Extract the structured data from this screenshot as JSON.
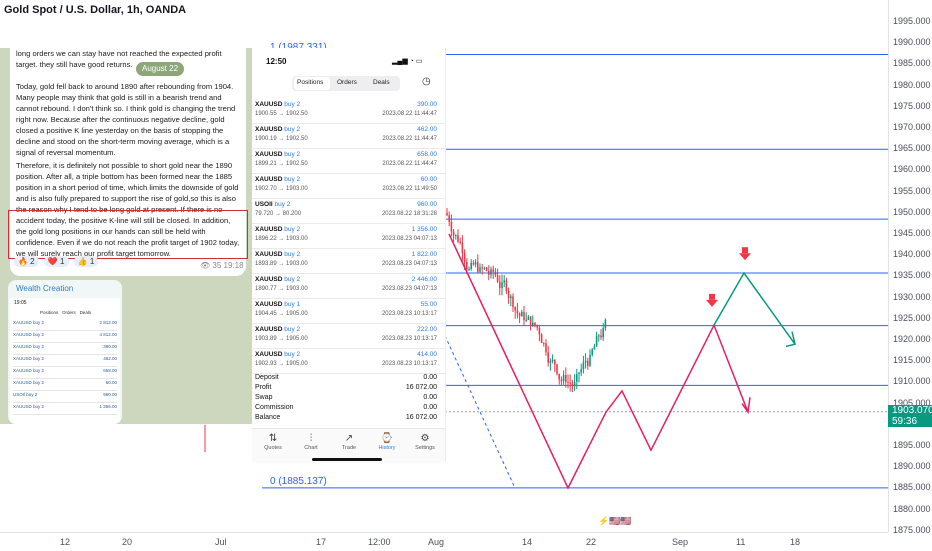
{
  "chart": {
    "title": "Gold Spot / U.S. Dollar, 1h, OANDA",
    "price_ticks": [
      "1995.000",
      "1990.000",
      "1985.000",
      "1980.000",
      "1975.000",
      "1970.000",
      "1965.000",
      "1960.000",
      "1955.000",
      "1950.000",
      "1945.000",
      "1940.000",
      "1935.000",
      "1930.000",
      "1925.000",
      "1920.000",
      "1915.000",
      "1910.000",
      "1905.000",
      "1900.000",
      "1895.000",
      "1890.000",
      "1885.000",
      "1880.000",
      "1875.000"
    ],
    "time_ticks": [
      "12",
      "20",
      "Jul",
      "17",
      "12:00",
      "Aug",
      "14",
      "22",
      "Sep",
      "11",
      "18"
    ],
    "fib_top_label": "1 (1987.331)",
    "fib_bottom_label": "0 (1885.137)",
    "current_price": "1903.070",
    "countdown": "59:36",
    "colors": {
      "fib_line": "#2962ff",
      "up": "#089981",
      "down": "#f23645",
      "projection_up": "#089981",
      "projection_down": "#e91e63"
    }
  },
  "telegram": {
    "top_fragment": "long orders we can stay have not reached the expected profit target. they still have good returns.",
    "date_chip": "August 22",
    "para1": "Today, gold fell back to around 1890 after rebounding from 1904. Many people may think that gold is still in a bearish trend and cannot rebound. I don't think so. I think gold is changing the trend right now. Because after the continuous negative decline, gold closed a positive K line yesterday on the basis of stopping the decline and stood on the short-term moving average, which is a signal of reversal momentum.",
    "para2": "Therefore, it is definitely not possible to short gold near the 1890 position. After all, a triple bottom has been formed near the 1885 position in a short period of time, which limits the downside of gold and is also fully prepared to support the rise of gold,so this is also the reason why I tend to be long gold at present. If there is no",
    "para3": "accident today, the positive K-line will still be closed. In addition, the gold long positions in our hands can still be held with confidence. Even if we do not reach the profit target of 1902 today, we will surely reach our profit target tomorrow.",
    "reactions": [
      "🔥 2",
      "❤️ 1",
      "👍 1"
    ],
    "views": "👁 35",
    "time": "19:18",
    "mini_title": "Wealth Creation",
    "mini_time": "19:05",
    "mini_tabs": [
      "Positions",
      "Orders",
      "Deals"
    ],
    "mini_rows": [
      {
        "sym": "XAUUSD buy 2",
        "val": "2 812.00"
      },
      {
        "sym": "XAUUSD buy 2",
        "val": "4 812.00"
      },
      {
        "sym": "XAUUSD buy 2",
        "val": "390.00"
      },
      {
        "sym": "XAUUSD buy 2",
        "val": "462.00"
      },
      {
        "sym": "XAUUSD buy 2",
        "val": "658.00"
      },
      {
        "sym": "XAUUSD buy 2",
        "val": "60.00"
      },
      {
        "sym": "USOIl buy 2",
        "val": "960.00"
      },
      {
        "sym": "XAUUSD buy 2",
        "val": "1 356.00"
      }
    ]
  },
  "phone": {
    "time": "12:50",
    "status": "▂▄▆ ◔ ▭",
    "tabs": [
      "Positions",
      "Orders",
      "Deals"
    ],
    "positions": [
      {
        "sym": "XAUUSD",
        "dir": "buy 2",
        "price": "1900.55 → 1902.50",
        "profit": "390.00",
        "time": "2023.08.22 11:44:47"
      },
      {
        "sym": "XAUUSD",
        "dir": "buy 2",
        "price": "1900.19 → 1902.50",
        "profit": "462.00",
        "time": "2023.08.22 11:44:47"
      },
      {
        "sym": "XAUUSD",
        "dir": "buy 2",
        "price": "1899.21 → 1902.50",
        "profit": "658.00",
        "time": "2023.08.22 11:44:47"
      },
      {
        "sym": "XAUUSD",
        "dir": "buy 2",
        "price": "1902.70 → 1903.00",
        "profit": "60.00",
        "time": "2023.08.22 11:49:50"
      },
      {
        "sym": "USOIl",
        "dir": "buy 2",
        "price": "79.720 → 80.200",
        "profit": "960.00",
        "time": "2023.08.22 18:31:28"
      },
      {
        "sym": "XAUUSD",
        "dir": "buy 2",
        "price": "1896.22 → 1903.00",
        "profit": "1 356.00",
        "time": "2023.08.23 04:07:13"
      },
      {
        "sym": "XAUUSD",
        "dir": "buy 2",
        "price": "1893.89 → 1903.00",
        "profit": "1 822.00",
        "time": "2023.08.23 04:07:13"
      },
      {
        "sym": "XAUUSD",
        "dir": "buy 2",
        "price": "1890.77 → 1903.00",
        "profit": "2 446.00",
        "time": "2023.08.23 04:07:13"
      },
      {
        "sym": "XAUUSD",
        "dir": "buy 1",
        "price": "1904.45 → 1905.00",
        "profit": "55.00",
        "time": "2023.08.23 10:13:17"
      },
      {
        "sym": "XAUUSD",
        "dir": "buy 2",
        "price": "1903.89 → 1905.00",
        "profit": "222.00",
        "time": "2023.08.23 10:13:17"
      },
      {
        "sym": "XAUUSD",
        "dir": "buy 2",
        "price": "1902.93 → 1905.00",
        "profit": "414.00",
        "time": "2023.08.23 10:13:17"
      }
    ],
    "summary": [
      {
        "key": "Deposit",
        "val": "0.00"
      },
      {
        "key": "Profit",
        "val": "16 072.00"
      },
      {
        "key": "Swap",
        "val": "0.00"
      },
      {
        "key": "Commission",
        "val": "0.00"
      },
      {
        "key": "Balance",
        "val": "16 072.00"
      }
    ],
    "nav": [
      {
        "icon": "⇅",
        "label": "Quotes"
      },
      {
        "icon": "⫶",
        "label": "Chart"
      },
      {
        "icon": "↗",
        "label": "Trade"
      },
      {
        "icon": "⌚",
        "label": "History"
      },
      {
        "icon": "⚙",
        "label": "Settings"
      }
    ]
  }
}
